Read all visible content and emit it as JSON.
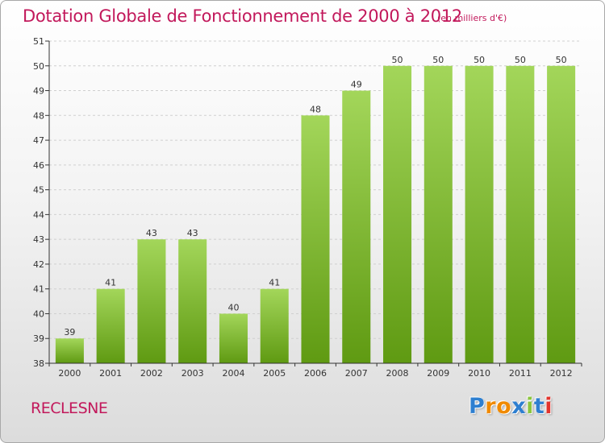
{
  "title": "Dotation Globale de Fonctionnement de 2000 à 2012",
  "unit_note": "(en milliers d'€)",
  "commune": "RECLESNE",
  "logo": {
    "text": "Proxiti",
    "letter_colors": [
      "#2e7fd0",
      "#f08a00",
      "#f08a00",
      "#2e7fd0",
      "#8bc53f",
      "#2e7fd0",
      "#e2342d"
    ]
  },
  "colors": {
    "bar_top": "#a3d65a",
    "bar_bottom": "#5f9a12",
    "accent": "#c2185b",
    "grid": "#cfcfcf",
    "axis": "#333333"
  },
  "chart_data": {
    "type": "bar",
    "title": "Dotation Globale de Fonctionnement de 2000 à 2012",
    "subtitle": "(en milliers d'€)",
    "xlabel": "",
    "ylabel": "",
    "categories": [
      "2000",
      "2001",
      "2002",
      "2003",
      "2004",
      "2005",
      "2006",
      "2007",
      "2008",
      "2009",
      "2010",
      "2011",
      "2012"
    ],
    "values": [
      39,
      41,
      43,
      43,
      40,
      41,
      48,
      49,
      50,
      50,
      50,
      50,
      50
    ],
    "ylim": [
      38,
      51
    ],
    "yticks": [
      38,
      39,
      40,
      41,
      42,
      43,
      44,
      45,
      46,
      47,
      48,
      49,
      50,
      51
    ],
    "grid": true,
    "legend": "none"
  }
}
